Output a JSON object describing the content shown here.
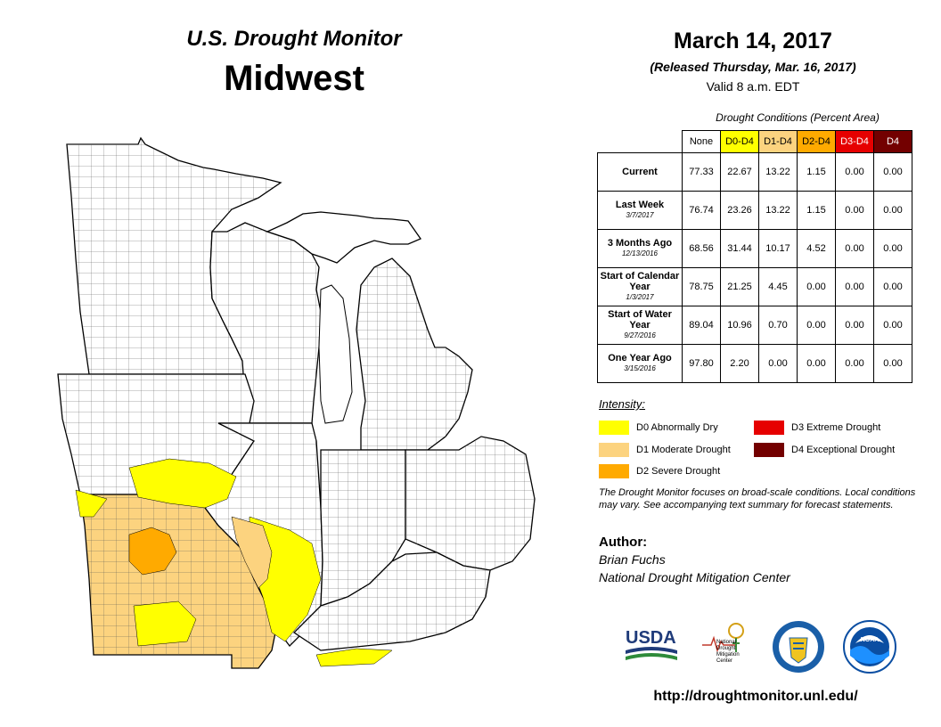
{
  "header": {
    "title": "U.S. Drought Monitor",
    "region": "Midwest",
    "date": "March 14, 2017",
    "released": "(Released Thursday, Mar. 16, 2017)",
    "valid": "Valid  8 a.m. EDT"
  },
  "table": {
    "caption": "Drought Conditions (Percent Area)",
    "columns": [
      "None",
      "D0-D4",
      "D1-D4",
      "D2-D4",
      "D3-D4",
      "D4"
    ],
    "rows": [
      {
        "label": "Current",
        "sub": "",
        "values": [
          "77.33",
          "22.67",
          "13.22",
          "1.15",
          "0.00",
          "0.00"
        ]
      },
      {
        "label": "Last Week",
        "sub": "3/7/2017",
        "values": [
          "76.74",
          "23.26",
          "13.22",
          "1.15",
          "0.00",
          "0.00"
        ]
      },
      {
        "label": "3 Months Ago",
        "sub": "12/13/2016",
        "values": [
          "68.56",
          "31.44",
          "10.17",
          "4.52",
          "0.00",
          "0.00"
        ]
      },
      {
        "label": "Start of Calendar Year",
        "sub": "1/3/2017",
        "values": [
          "78.75",
          "21.25",
          "4.45",
          "0.00",
          "0.00",
          "0.00"
        ]
      },
      {
        "label": "Start of Water Year",
        "sub": "9/27/2016",
        "values": [
          "89.04",
          "10.96",
          "0.70",
          "0.00",
          "0.00",
          "0.00"
        ]
      },
      {
        "label": "One Year Ago",
        "sub": "3/15/2016",
        "values": [
          "97.80",
          "2.20",
          "0.00",
          "0.00",
          "0.00",
          "0.00"
        ]
      }
    ]
  },
  "legend": {
    "title": "Intensity:",
    "items": [
      {
        "label": "D0 Abnormally Dry",
        "color": "#ffff00"
      },
      {
        "label": "D1 Moderate Drought",
        "color": "#fcd37f"
      },
      {
        "label": "D2 Severe Drought",
        "color": "#ffaa00"
      },
      {
        "label": "D3 Extreme Drought",
        "color": "#e60000"
      },
      {
        "label": "D4 Exceptional Drought",
        "color": "#730000"
      }
    ]
  },
  "note": "The Drought Monitor focuses on broad-scale conditions. Local conditions may vary. See accompanying text summary for forecast statements.",
  "author": {
    "heading": "Author:",
    "name": "Brian Fuchs",
    "org": "National Drought Mitigation Center"
  },
  "logos": {
    "usda": "USDA",
    "ndmc": "National Drought Mitigation Center",
    "noaa": "NOAA"
  },
  "url": "http://droughtmonitor.unl.edu/"
}
